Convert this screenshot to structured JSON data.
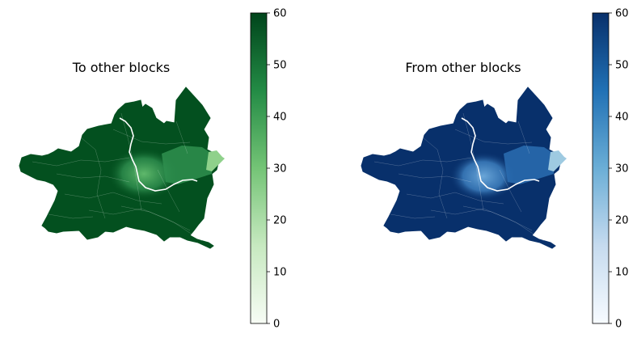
{
  "maps": [
    {
      "title": "To other blocks",
      "colormap": "greens",
      "colorbar": {
        "min": 0,
        "max": 60,
        "ticks": [
          "0",
          "10",
          "20",
          "30",
          "40",
          "50",
          "60"
        ]
      },
      "colors": {
        "low": "#f7fcf5",
        "mid": "#74c476",
        "high": "#00441b",
        "fill": "#03501f",
        "center": "#2f8f4f",
        "edge": "#8fd18b"
      }
    },
    {
      "title": "From other blocks",
      "colormap": "blues",
      "colorbar": {
        "min": 0,
        "max": 60,
        "ticks": [
          "0",
          "10",
          "20",
          "30",
          "40",
          "50",
          "60"
        ]
      },
      "colors": {
        "low": "#f7fbff",
        "mid": "#6baed6",
        "high": "#08306b",
        "fill": "#08306b",
        "center": "#3f82c2",
        "edge": "#9ecae1"
      }
    }
  ]
}
